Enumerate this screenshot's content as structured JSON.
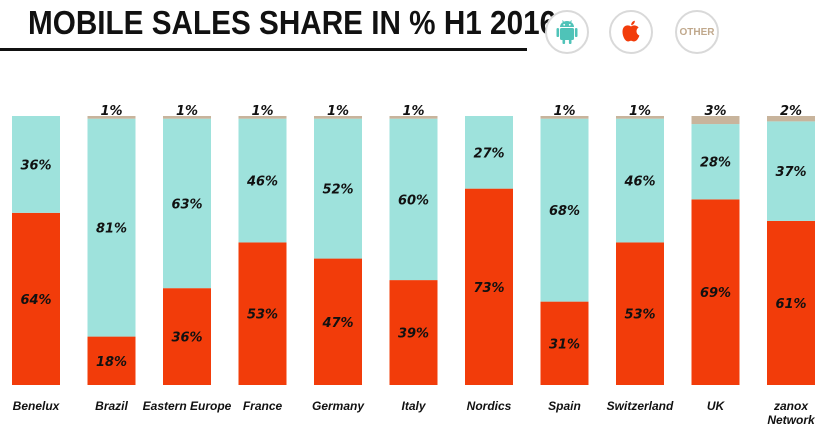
{
  "chart_data": {
    "type": "bar",
    "stacked": true,
    "title": "MOBILE SALES SHARE IN % H1 2016",
    "categories": [
      [
        "Benelux"
      ],
      [
        "Brazil"
      ],
      [
        "Eastern Europe"
      ],
      [
        "France"
      ],
      [
        "Germany"
      ],
      [
        "Italy"
      ],
      [
        "Nordics"
      ],
      [
        "Spain"
      ],
      [
        "Switzerland"
      ],
      [
        "UK"
      ],
      [
        "zanox",
        "Network"
      ]
    ],
    "series": [
      {
        "key": "apple",
        "values": [
          64,
          18,
          36,
          53,
          47,
          39,
          73,
          31,
          53,
          69,
          61
        ],
        "labels": [
          "64%",
          "18%",
          "36%",
          "53%",
          "47%",
          "39%",
          "73%",
          "31%",
          "53%",
          "69%",
          "61%"
        ]
      },
      {
        "key": "android",
        "values": [
          36,
          81,
          63,
          46,
          52,
          60,
          27,
          68,
          46,
          28,
          37
        ],
        "labels": [
          "36%",
          "81%",
          "63%",
          "46%",
          "52%",
          "60%",
          "27%",
          "68%",
          "46%",
          "28%",
          "37%"
        ]
      },
      {
        "key": "other",
        "values": [
          0,
          1,
          1,
          1,
          1,
          1,
          0,
          1,
          1,
          3,
          2
        ],
        "labels": [
          "",
          "1%",
          "1%",
          "1%",
          "1%",
          "1%",
          "",
          "1%",
          "1%",
          "3%",
          "2%"
        ]
      }
    ],
    "ylim": [
      0,
      100
    ],
    "legend": {
      "position": "top-right",
      "items": [
        {
          "key": "android",
          "icon": "android-icon"
        },
        {
          "key": "apple",
          "icon": "apple-icon"
        },
        {
          "key": "other",
          "text": "OTHER"
        }
      ]
    },
    "colors": {
      "android": "#9ee2dc",
      "apple": "#f23c0a",
      "other": "#c8b49c",
      "legend_android": "#4fc3b8",
      "legend_apple": "#f23c0a",
      "legend_other": "#c0a88c"
    },
    "grid": false
  }
}
